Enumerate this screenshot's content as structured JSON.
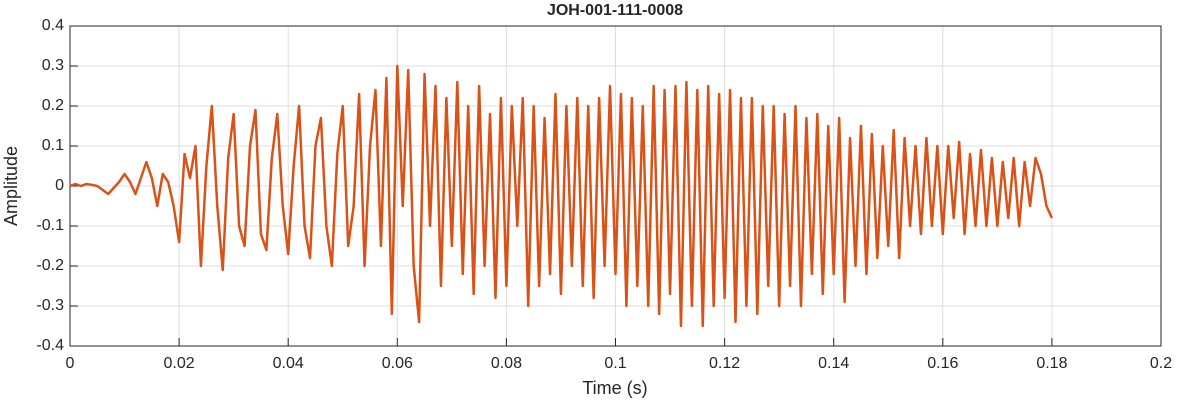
{
  "chart_data": {
    "type": "line",
    "title": "JOH-001-111-0008",
    "xlabel": "Time (s)",
    "ylabel": "Amplitude",
    "x": [
      0,
      0.001,
      0.002,
      0.003,
      0.004,
      0.005,
      0.006,
      0.007,
      0.008,
      0.009,
      0.01,
      0.011,
      0.012,
      0.013,
      0.014,
      0.015,
      0.016,
      0.017,
      0.018,
      0.019,
      0.02,
      0.021,
      0.022,
      0.023,
      0.024,
      0.025,
      0.026,
      0.027,
      0.028,
      0.029,
      0.03,
      0.031,
      0.032,
      0.033,
      0.034,
      0.035,
      0.036,
      0.037,
      0.038,
      0.039,
      0.04,
      0.041,
      0.042,
      0.043,
      0.044,
      0.045,
      0.046,
      0.047,
      0.048,
      0.049,
      0.05,
      0.051,
      0.052,
      0.053,
      0.054,
      0.055,
      0.056,
      0.057,
      0.058,
      0.059,
      0.06,
      0.061,
      0.062,
      0.063,
      0.064,
      0.065,
      0.066,
      0.067,
      0.068,
      0.069,
      0.07,
      0.071,
      0.072,
      0.073,
      0.074,
      0.075,
      0.076,
      0.077,
      0.078,
      0.079,
      0.08,
      0.081,
      0.082,
      0.083,
      0.084,
      0.085,
      0.086,
      0.087,
      0.088,
      0.089,
      0.09,
      0.091,
      0.092,
      0.093,
      0.094,
      0.095,
      0.096,
      0.097,
      0.098,
      0.099,
      0.1,
      0.101,
      0.102,
      0.103,
      0.104,
      0.105,
      0.106,
      0.107,
      0.108,
      0.109,
      0.11,
      0.111,
      0.112,
      0.113,
      0.114,
      0.115,
      0.116,
      0.117,
      0.118,
      0.119,
      0.12,
      0.121,
      0.122,
      0.123,
      0.124,
      0.125,
      0.126,
      0.127,
      0.128,
      0.129,
      0.13,
      0.131,
      0.132,
      0.133,
      0.134,
      0.135,
      0.136,
      0.137,
      0.138,
      0.139,
      0.14,
      0.141,
      0.142,
      0.143,
      0.144,
      0.145,
      0.146,
      0.147,
      0.148,
      0.149,
      0.15,
      0.151,
      0.152,
      0.153,
      0.154,
      0.155,
      0.156,
      0.157,
      0.158,
      0.159,
      0.16,
      0.161,
      0.162,
      0.163,
      0.164,
      0.165,
      0.166,
      0.167,
      0.168,
      0.169,
      0.17,
      0.171,
      0.172,
      0.173,
      0.174,
      0.175,
      0.176,
      0.177,
      0.178,
      0.179,
      0.18
    ],
    "series": [
      {
        "color": "#d95319",
        "values": [
          0,
          0.005,
          0,
          0.005,
          0.003,
          0,
          -0.01,
          -0.02,
          -0.005,
          0.01,
          0.03,
          0.01,
          -0.02,
          0.02,
          0.06,
          0.02,
          -0.05,
          0.03,
          0.01,
          -0.05,
          -0.14,
          0.08,
          0.02,
          0.1,
          -0.2,
          0.05,
          0.2,
          -0.05,
          -0.21,
          0.07,
          0.18,
          -0.1,
          -0.15,
          0.1,
          0.19,
          -0.12,
          -0.16,
          0.07,
          0.18,
          -0.05,
          -0.17,
          0.05,
          0.2,
          -0.1,
          -0.18,
          0.1,
          0.17,
          -0.1,
          -0.2,
          0.08,
          0.2,
          -0.15,
          -0.05,
          0.23,
          -0.2,
          0.1,
          0.24,
          -0.15,
          0.27,
          -0.32,
          0.3,
          -0.05,
          0.29,
          -0.2,
          -0.34,
          0.28,
          -0.1,
          0.25,
          -0.25,
          0.22,
          -0.15,
          0.26,
          -0.22,
          0.2,
          -0.27,
          0.25,
          -0.2,
          0.18,
          -0.28,
          0.22,
          -0.25,
          0.2,
          -0.1,
          0.22,
          -0.3,
          0.2,
          -0.25,
          0.17,
          -0.22,
          0.23,
          -0.27,
          0.2,
          -0.2,
          0.22,
          -0.25,
          0.2,
          -0.28,
          0.22,
          -0.2,
          0.25,
          -0.22,
          0.23,
          -0.3,
          0.22,
          -0.25,
          0.2,
          -0.3,
          0.25,
          -0.32,
          0.24,
          -0.27,
          0.25,
          -0.35,
          0.26,
          -0.3,
          0.24,
          -0.35,
          0.25,
          -0.3,
          0.23,
          -0.28,
          0.24,
          -0.34,
          0.22,
          -0.3,
          0.22,
          -0.32,
          0.2,
          -0.25,
          0.2,
          -0.3,
          0.18,
          -0.25,
          0.2,
          -0.3,
          0.17,
          -0.22,
          0.18,
          -0.27,
          0.15,
          -0.22,
          0.17,
          -0.29,
          0.12,
          -0.2,
          0.15,
          -0.22,
          0.13,
          -0.18,
          0.1,
          -0.15,
          0.14,
          -0.18,
          0.12,
          -0.1,
          0.1,
          -0.12,
          0.12,
          -0.1,
          0.1,
          -0.12,
          0.1,
          -0.08,
          0.11,
          -0.12,
          0.08,
          -0.1,
          0.09,
          -0.1,
          0.07,
          -0.1,
          0.06,
          -0.08,
          0.07,
          -0.1,
          0.06,
          -0.05,
          0.07,
          0.03,
          -0.05,
          -0.08
        ]
      }
    ],
    "xlim": [
      0,
      0.2
    ],
    "xticks": [
      0,
      0.02,
      0.04,
      0.06,
      0.08,
      0.1,
      0.12,
      0.14,
      0.16,
      0.18,
      0.2
    ],
    "ylim": [
      -0.4,
      0.4
    ],
    "yticks": [
      -0.4,
      -0.3,
      -0.2,
      -0.1,
      0,
      0.1,
      0.2,
      0.3,
      0.4
    ],
    "grid": true
  }
}
